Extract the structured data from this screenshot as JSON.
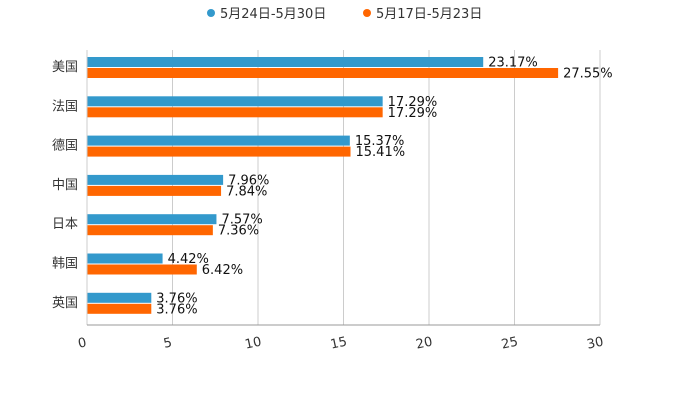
{
  "chart_data": {
    "type": "bar",
    "orientation": "horizontal",
    "title": "",
    "xlabel": "",
    "ylabel": "",
    "xlim": [
      0,
      30
    ],
    "x_ticks": [
      0,
      5,
      10,
      15,
      20,
      25,
      30
    ],
    "grid": true,
    "legend_position": "top-center",
    "categories": [
      "美国",
      "法国",
      "德国",
      "中国",
      "日本",
      "韩国",
      "英国"
    ],
    "series": [
      {
        "name": "5月24日-5月30日",
        "color": "#3399cc",
        "values": [
          23.17,
          17.29,
          15.37,
          7.96,
          7.57,
          4.42,
          3.76
        ],
        "labels": [
          "23.17%",
          "17.29%",
          "15.37%",
          "7.96%",
          "7.57%",
          "4.42%",
          "3.76%"
        ]
      },
      {
        "name": "5月17日-5月23日",
        "color": "#ff6600",
        "values": [
          27.55,
          17.29,
          15.41,
          7.84,
          7.36,
          6.42,
          3.76
        ],
        "labels": [
          "27.55%",
          "17.29%",
          "15.41%",
          "7.84%",
          "7.36%",
          "6.42%",
          "3.76%"
        ]
      }
    ]
  }
}
